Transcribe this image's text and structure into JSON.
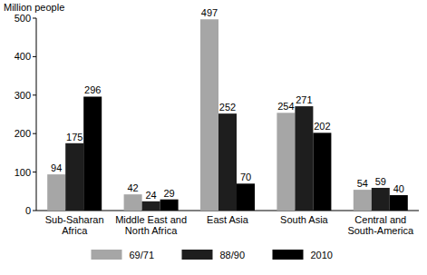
{
  "chart_data": {
    "type": "bar",
    "y_label": "Million people",
    "categories": [
      "Sub-Saharan Africa",
      "Middle East and North Africa",
      "East Asia",
      "South Asia",
      "Central and South-America"
    ],
    "series": [
      {
        "name": "69/71",
        "color": "#a6a6a6",
        "values": [
          94,
          42,
          497,
          254,
          54
        ]
      },
      {
        "name": "88/90",
        "color": "#1e1e1e",
        "values": [
          175,
          24,
          252,
          271,
          59
        ]
      },
      {
        "name": "2010",
        "color": "#000000",
        "values": [
          296,
          29,
          70,
          202,
          40
        ]
      }
    ],
    "ylim": [
      0,
      500
    ],
    "yticks": [
      0,
      100,
      200,
      300,
      400,
      500
    ],
    "grid": false,
    "data_labels": true,
    "legend": "bottom"
  }
}
